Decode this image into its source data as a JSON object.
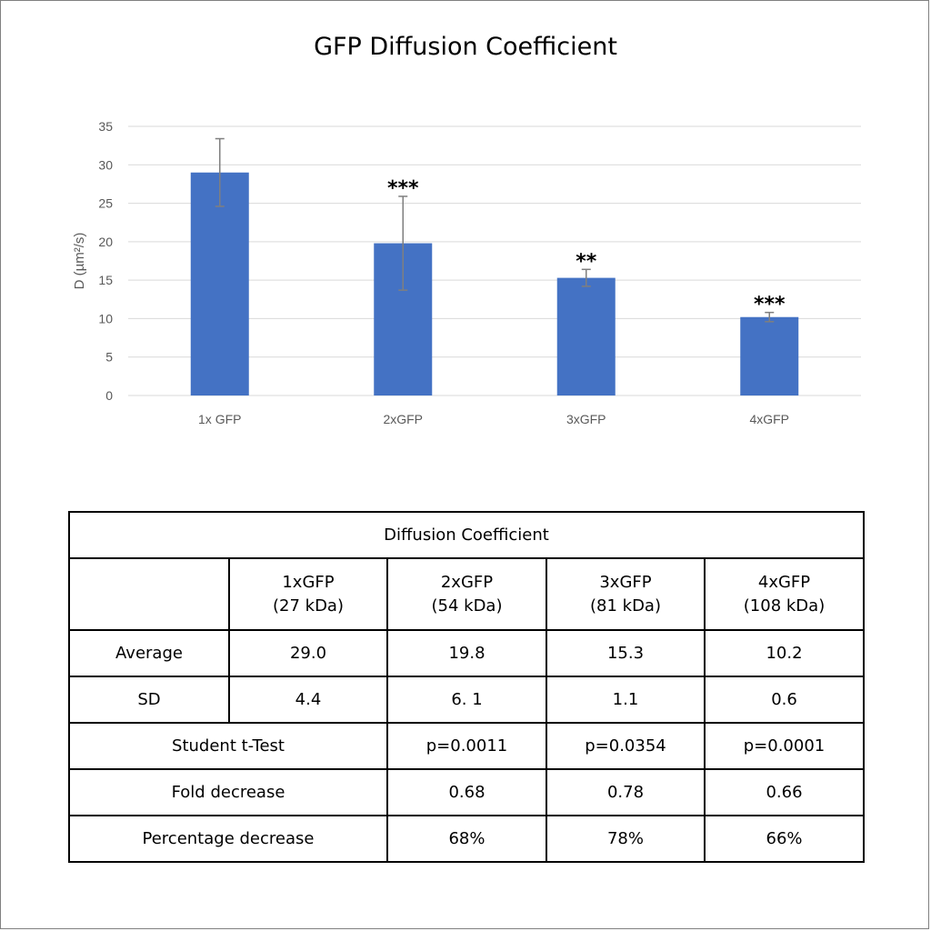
{
  "chart_data": {
    "type": "bar",
    "title": "GFP Diffusion Coefficient",
    "xlabel": "",
    "ylabel": "D (µm²/s)",
    "ylim": [
      0,
      35
    ],
    "yticks": [
      0,
      5,
      10,
      15,
      20,
      25,
      30,
      35
    ],
    "categories": [
      "1x GFP",
      "2xGFP",
      "3xGFP",
      "4xGFP"
    ],
    "values": [
      29.0,
      19.8,
      15.3,
      10.2
    ],
    "errors": [
      4.4,
      6.1,
      1.1,
      0.6
    ],
    "significance": [
      "",
      "***",
      "**",
      "***"
    ],
    "bar_color": "#4472c4",
    "grid": true,
    "legend": "none"
  },
  "table": {
    "title": "Diffusion Coefficient",
    "columns": [
      {
        "name": "1xGFP",
        "sub": "(27 kDa)"
      },
      {
        "name": "2xGFP",
        "sub": "(54 kDa)"
      },
      {
        "name": "3xGFP",
        "sub": "(81 kDa)"
      },
      {
        "name": "4xGFP",
        "sub": "(108 kDa)"
      }
    ],
    "average": {
      "label": "Average",
      "values": [
        "29.0",
        "19.8",
        "15.3",
        "10.2"
      ]
    },
    "sd": {
      "label": "SD",
      "values": [
        "4.4",
        "6. 1",
        "1.1",
        "0.6"
      ]
    },
    "ttest": {
      "label": "Student t-Test",
      "values": [
        "p=0.0011",
        "p=0.0354",
        "p=0.0001"
      ]
    },
    "fold": {
      "label": "Fold decrease",
      "values": [
        "0.68",
        "0.78",
        "0.66"
      ]
    },
    "percent": {
      "label": "Percentage decrease",
      "values": [
        "68%",
        "78%",
        "66%"
      ]
    }
  }
}
